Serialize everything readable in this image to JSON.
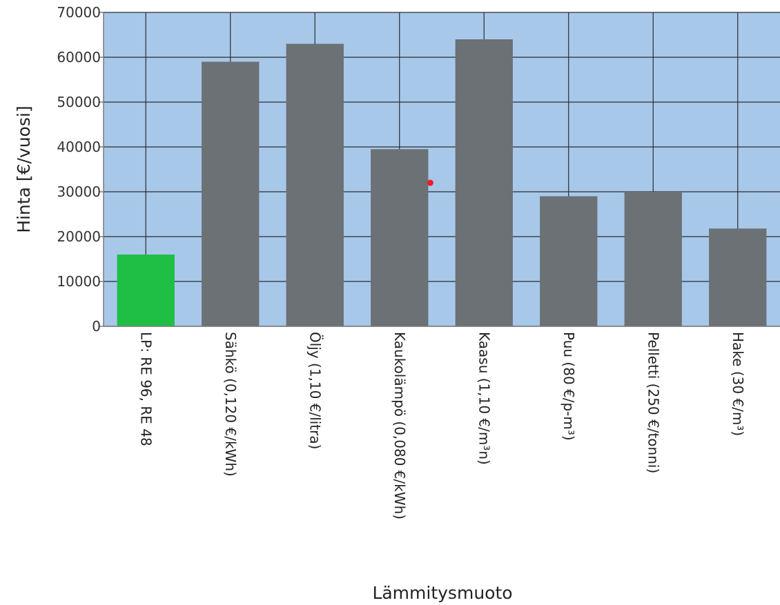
{
  "chart_data": {
    "type": "bar",
    "title": "",
    "xlabel": "Lämmitysmuoto",
    "ylabel": "Hinta [€/vuosi]",
    "ylim": [
      0,
      70000
    ],
    "yticks": [
      0,
      10000,
      20000,
      30000,
      40000,
      50000,
      60000,
      70000
    ],
    "grid": true,
    "legend": "none",
    "categories": [
      "LP: RE 96, RE 48",
      "Sähkö (0,120 €/kWh)",
      "Öljy (1,10 €/litra)",
      "Kaukolämpö (0,080 €/kWh)",
      "Kaasu (1,10 €/m³n)",
      "Puu (80 €/p-m³)",
      "Pelletti (250 €/tonni)",
      "Hake (30 €/m³)"
    ],
    "values": [
      16000,
      59000,
      63000,
      39500,
      64000,
      29000,
      30000,
      21800
    ],
    "bar_colors": [
      "#1fbf45",
      "#6b7175",
      "#6b7175",
      "#6b7175",
      "#6b7175",
      "#6b7175",
      "#6b7175",
      "#6b7175"
    ],
    "plot_background": "#a8c8ea",
    "grid_color": "#2b2b2b",
    "marker": {
      "category": "Kaukolämpö (0,080 €/kWh)",
      "value": 32000,
      "color": "#ee1c24"
    }
  }
}
